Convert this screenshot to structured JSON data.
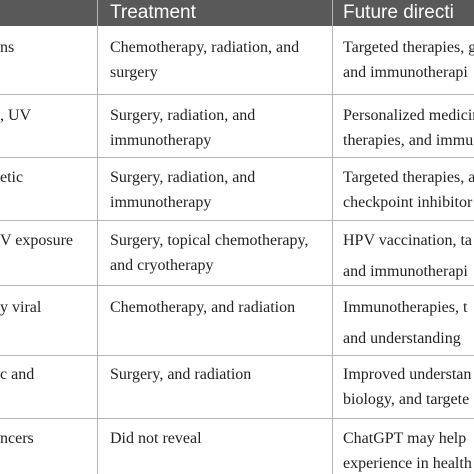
{
  "table": {
    "headers": [
      "",
      "Treatment",
      "Future directi"
    ],
    "rows": [
      {
        "c0": [
          "ns"
        ],
        "c1": [
          "Chemotherapy, radiation, and",
          "surgery"
        ],
        "c2": [
          "Targeted therapies, g",
          "and immunotherapi"
        ]
      },
      {
        "c0": [
          ", UV"
        ],
        "c1": [
          "Surgery, radiation, and",
          "immunotherapy"
        ],
        "c2": [
          "Personalized medicin",
          "therapies, and immu"
        ]
      },
      {
        "c0": [
          "etic"
        ],
        "c1": [
          "Surgery, radiation, and",
          "immunotherapy"
        ],
        "c2": [
          "Targeted therapies, a",
          "checkpoint inhibitor"
        ]
      },
      {
        "c0": [
          "V exposure"
        ],
        "c1": [
          "Surgery, topical chemotherapy,",
          "and cryotherapy"
        ],
        "c2": [
          "HPV vaccination, ta",
          "and immunotherapi"
        ]
      },
      {
        "c0": [
          "y viral"
        ],
        "c1": [
          "Chemotherapy, and radiation"
        ],
        "c2": [
          "Immunotherapies, t",
          "and understanding"
        ]
      },
      {
        "c0": [
          "c and"
        ],
        "c1": [
          "Surgery, and radiation"
        ],
        "c2": [
          "Improved understan",
          "biology, and targete"
        ]
      },
      {
        "c0": [
          "ncers"
        ],
        "c1": [
          "Did not reveal"
        ],
        "c2": [
          "ChatGPT may help",
          "experience in health"
        ]
      }
    ]
  }
}
